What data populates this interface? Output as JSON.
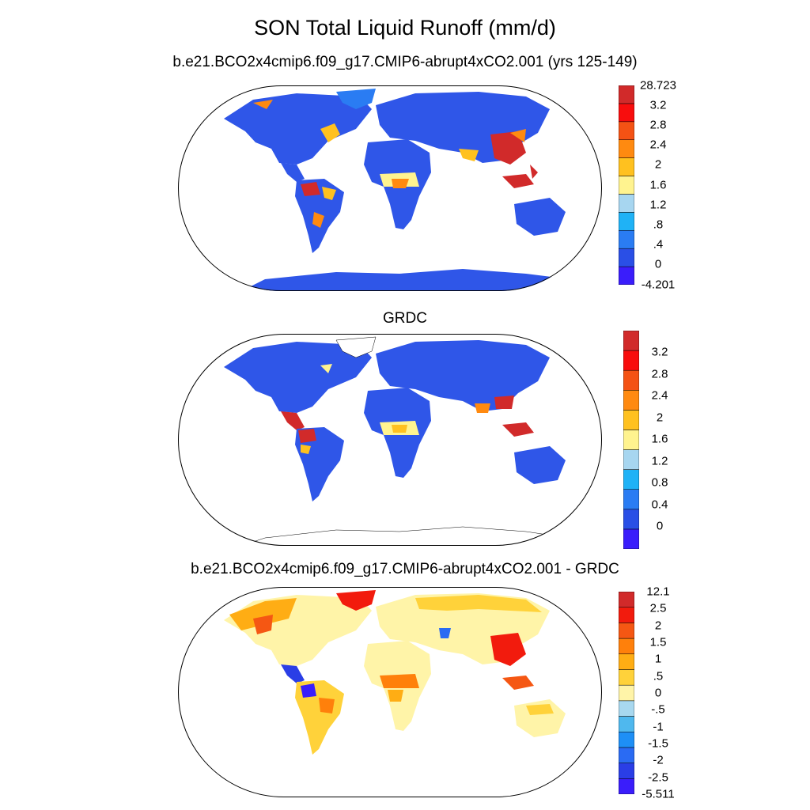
{
  "title": "SON Total Liquid Runoff (mm/d)",
  "panels": [
    {
      "id": "model",
      "subtitle": "b.e21.BCO2x4cmip6.f09_g17.CMIP6-abrupt4xCO2.001 (yrs 125-149)",
      "colorbar": {
        "colors": [
          "#3a1dfb",
          "#2a4fe6",
          "#2a7cf3",
          "#1fb2f6",
          "#a7d6f0",
          "#fff38f",
          "#ffc11f",
          "#ff8a10",
          "#f45214",
          "#f80d0d",
          "#d12a2a"
        ],
        "labels": [
          "28.723",
          "3.2",
          "2.8",
          "2.4",
          "2",
          "1.6",
          "1.2",
          ".8",
          ".4",
          "0",
          "-4.201"
        ]
      }
    },
    {
      "id": "obs",
      "subtitle": "GRDC",
      "colorbar": {
        "colors": [
          "#3a1dfb",
          "#2a4fe6",
          "#2a7cf3",
          "#1fb2f6",
          "#a7d6f0",
          "#fff38f",
          "#ffc11f",
          "#ff8a10",
          "#f45214",
          "#f80d0d",
          "#d12a2a"
        ],
        "labels": [
          "3.2",
          "2.8",
          "2.4",
          "2",
          "1.6",
          "1.2",
          "0.8",
          "0.4",
          "0"
        ]
      }
    },
    {
      "id": "diff",
      "subtitle": "b.e21.BCO2x4cmip6.f09_g17.CMIP6-abrupt4xCO2.001 - GRDC",
      "colorbar": {
        "colors": [
          "#3a1dfb",
          "#2a3ee6",
          "#2a6bf3",
          "#1e8ff6",
          "#4fb8ee",
          "#a8d8ef",
          "#fff4a8",
          "#ffd23a",
          "#ffad14",
          "#ff800b",
          "#f55713",
          "#f21b0d",
          "#d12a2a"
        ],
        "labels": [
          "12.1",
          "2.5",
          "2",
          "1.5",
          "1",
          ".5",
          "0",
          "-.5",
          "-1",
          "-1.5",
          "-2",
          "-2.5",
          "-5.511"
        ]
      }
    }
  ]
}
